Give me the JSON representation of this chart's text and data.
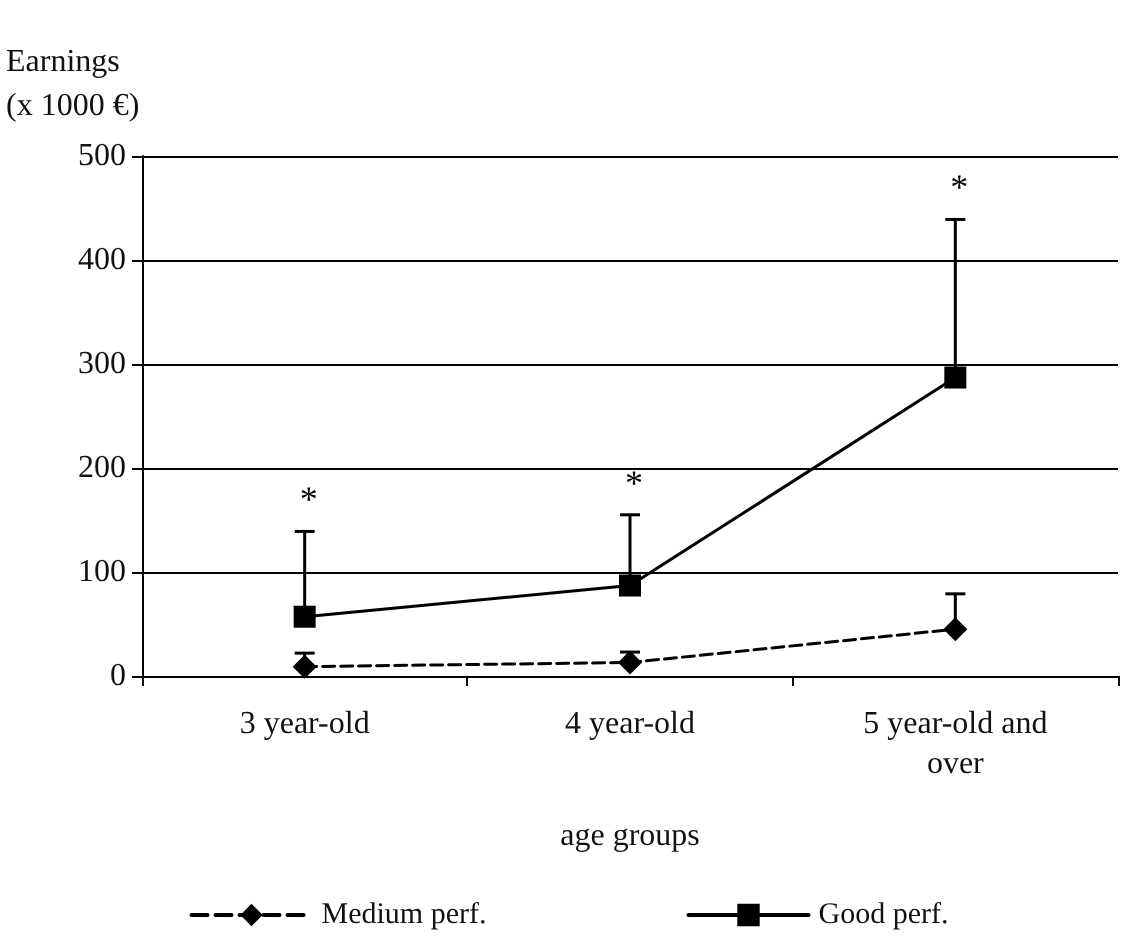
{
  "chart_data": {
    "type": "line",
    "xlabel": "age groups",
    "ylabel": "Earnings\n(x 1000 €)",
    "categories": [
      "3 year-old",
      "4 year-old",
      "5 year-old and\nover"
    ],
    "series": [
      {
        "name": "Medium perf.",
        "color": "#000000",
        "marker": "diamond",
        "line_style": "dashed",
        "values": [
          9,
          13,
          45
        ],
        "errors": [
          [
            9,
            22
          ],
          [
            13,
            23
          ],
          [
            45,
            79
          ]
        ]
      },
      {
        "name": "Good perf.",
        "color": "#000000",
        "marker": "square",
        "line_style": "solid",
        "values": [
          57,
          87,
          287
        ],
        "errors": [
          [
            57,
            139
          ],
          [
            87,
            155
          ],
          [
            287,
            439
          ]
        ]
      }
    ],
    "annotations": [
      "*",
      "*",
      "*"
    ],
    "ylim": [
      0,
      500
    ],
    "yticks": [
      0,
      100,
      200,
      300,
      400,
      500
    ],
    "grid": "y",
    "legend": "bottom"
  }
}
